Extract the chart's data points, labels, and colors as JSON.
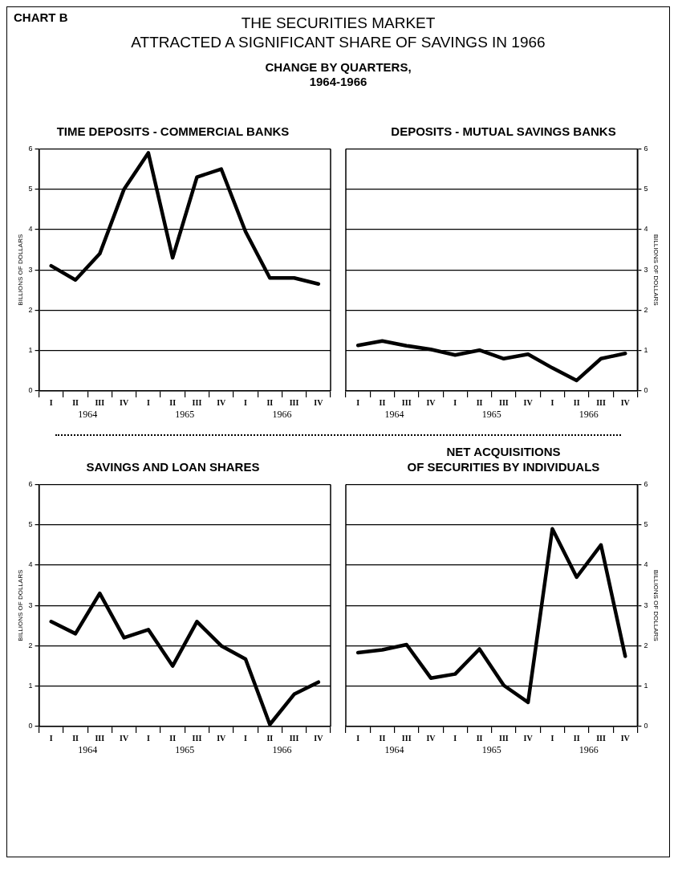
{
  "chart_data": [
    {
      "type": "other",
      "title": "THE SECURITIES MARKET\nATTRACTED A SIGNIFICANT SHARE OF SAVINGS IN 1966",
      "subtitle": "CHANGE BY QUARTERS,\n1964-1966",
      "annotations": [
        "CHART B"
      ]
    },
    {
      "type": "line",
      "title": "TIME DEPOSITS - COMMERCIAL BANKS",
      "ylabel": "BILLIONS OF DOLLARS",
      "categories": [
        "I",
        "II",
        "III",
        "IV",
        "I",
        "II",
        "III",
        "IV",
        "I",
        "II",
        "III",
        "IV"
      ],
      "annotations": [
        "1964",
        "1965",
        "1966"
      ],
      "ylim": [
        0,
        6
      ],
      "yticks": [
        0,
        1,
        2,
        3,
        4,
        5,
        6
      ],
      "grid": "y",
      "marker": "none",
      "series": [
        {
          "color": "#000000",
          "values": [
            3.1,
            2.75,
            3.4,
            5.0,
            5.9,
            3.3,
            5.3,
            5.5,
            3.95,
            2.8,
            2.8,
            2.65
          ]
        }
      ]
    },
    {
      "type": "line",
      "title": "DEPOSITS - MUTUAL SAVINGS BANKS",
      "y2label": "BILLIONS OF DOLLARS",
      "categories": [
        "I",
        "II",
        "III",
        "IV",
        "I",
        "II",
        "III",
        "IV",
        "I",
        "II",
        "III",
        "IV"
      ],
      "annotations": [
        "1964",
        "1965",
        "1966"
      ],
      "y2lim": [
        0,
        6
      ],
      "y2ticks": [
        0,
        1,
        2,
        3,
        4,
        5,
        6
      ],
      "grid": "y",
      "marker": "none",
      "series": [
        {
          "color": "#000000",
          "axis": "y2",
          "values": [
            1.13,
            1.24,
            1.12,
            1.03,
            0.89,
            1.01,
            0.8,
            0.91,
            0.57,
            0.26,
            0.8,
            0.93
          ]
        }
      ]
    },
    {
      "type": "line",
      "title": "SAVINGS AND LOAN SHARES",
      "ylabel": "BILLIONS OF DOLLARS",
      "categories": [
        "I",
        "II",
        "III",
        "IV",
        "I",
        "II",
        "III",
        "IV",
        "I",
        "II",
        "III",
        "IV"
      ],
      "annotations": [
        "1964",
        "1965",
        "1966"
      ],
      "ylim": [
        0,
        6
      ],
      "yticks": [
        0,
        1,
        2,
        3,
        4,
        5,
        6
      ],
      "grid": "y",
      "marker": "none",
      "series": [
        {
          "color": "#000000",
          "values": [
            2.6,
            2.3,
            3.3,
            2.2,
            2.4,
            1.5,
            2.6,
            2.0,
            1.67,
            0.05,
            0.8,
            1.1
          ]
        }
      ]
    },
    {
      "type": "line",
      "title": "NET ACQUISITIONS\nOF SECURITIES BY INDIVIDUALS",
      "y2label": "BILLIONS OF DOLLARS",
      "categories": [
        "I",
        "II",
        "III",
        "IV",
        "I",
        "II",
        "III",
        "IV",
        "I",
        "II",
        "III",
        "IV"
      ],
      "annotations": [
        "1964",
        "1965",
        "1966"
      ],
      "y2lim": [
        0,
        6
      ],
      "y2ticks": [
        0,
        1,
        2,
        3,
        4,
        5,
        6
      ],
      "grid": "y",
      "marker": "none",
      "series": [
        {
          "color": "#000000",
          "axis": "y2",
          "values": [
            1.83,
            1.9,
            2.03,
            1.2,
            1.3,
            1.92,
            1.02,
            0.6,
            4.9,
            3.7,
            4.5,
            1.74
          ]
        }
      ]
    }
  ]
}
